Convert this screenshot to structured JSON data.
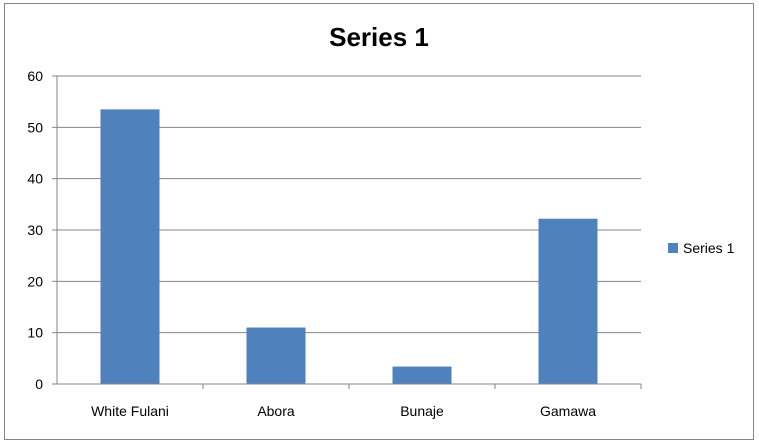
{
  "chart_data": {
    "type": "bar",
    "title": "Series 1",
    "categories": [
      "White Fulani",
      "Abora",
      "Bunaje",
      "Gamawa"
    ],
    "series": [
      {
        "name": "Series 1",
        "values": [
          53.5,
          11,
          3.4,
          32.2
        ],
        "color": "#4f81bd"
      }
    ],
    "ylim": [
      0,
      60
    ],
    "yticks": [
      0,
      10,
      20,
      30,
      40,
      50,
      60
    ],
    "grid": true,
    "legend": "right"
  }
}
